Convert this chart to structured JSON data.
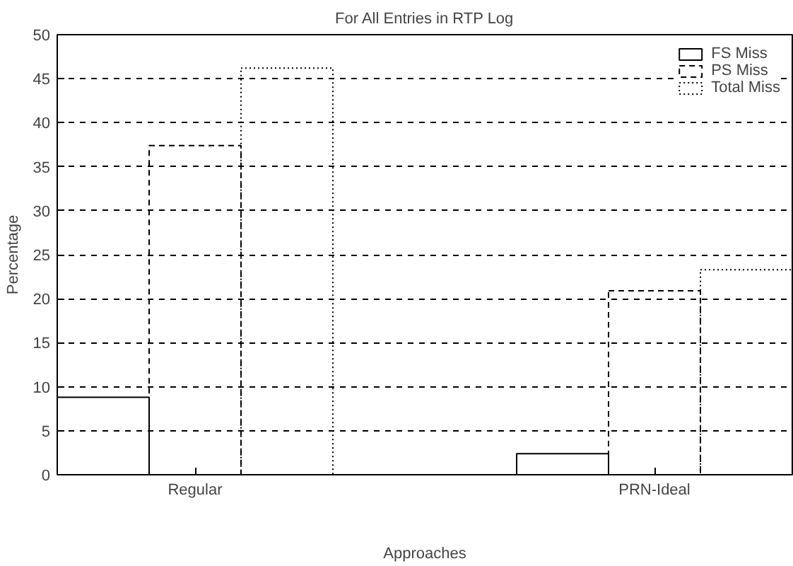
{
  "chart_data": {
    "type": "bar",
    "title": "For All Entries in RTP Log",
    "xlabel": "Approaches",
    "ylabel": "Percentage",
    "categories": [
      "Regular",
      "PRN-Ideal"
    ],
    "series": [
      {
        "name": "FS Miss",
        "color": "#000000",
        "line_style": "solid",
        "values": [
          8.8,
          2.4
        ]
      },
      {
        "name": "PS Miss",
        "color": "#000000",
        "line_style": "dashed",
        "values": [
          37.4,
          20.9
        ]
      },
      {
        "name": "Total Miss",
        "color": "#000000",
        "line_style": "dotted",
        "values": [
          46.2,
          23.3
        ]
      }
    ],
    "ylim": [
      0,
      50
    ],
    "yticks": [
      0,
      5,
      10,
      15,
      20,
      25,
      30,
      35,
      40,
      45,
      50
    ],
    "grid": "y",
    "legend": "top right"
  }
}
